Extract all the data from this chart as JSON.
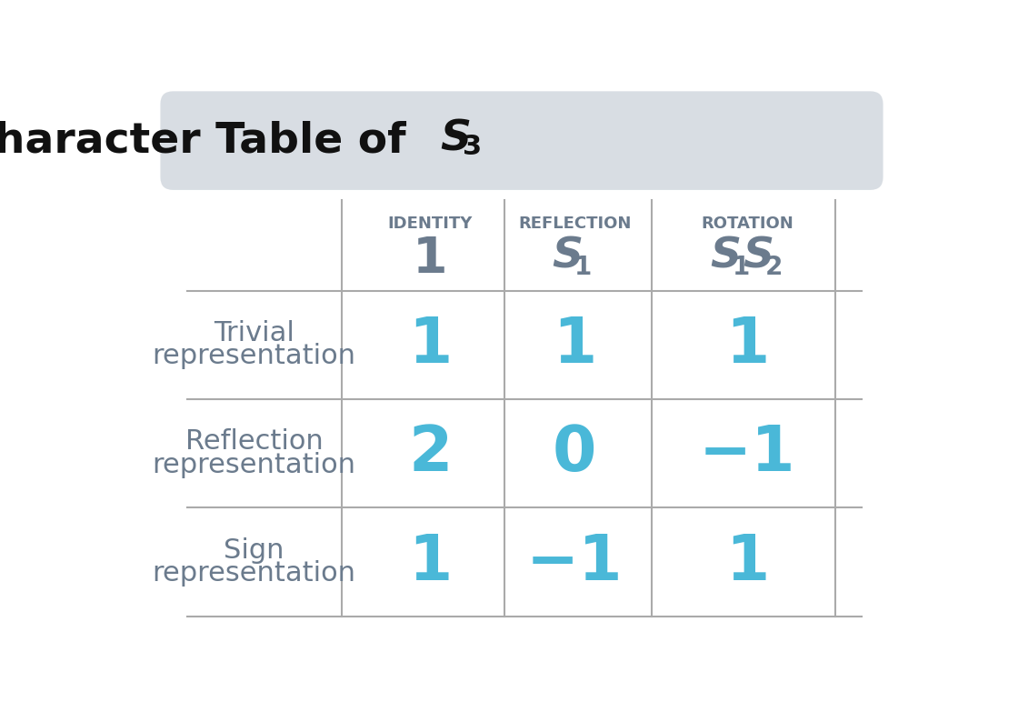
{
  "title_main": "Character Table of  ",
  "title_S": "S",
  "title_sub": "3",
  "bg_color": "#ffffff",
  "title_box_color": "#d8dde3",
  "col_headers_top": [
    "IDENTITY",
    "REFLECTION",
    "ROTATION"
  ],
  "row_labels": [
    [
      "Trivial",
      "representation"
    ],
    [
      "Reflection",
      "representation"
    ],
    [
      "Sign",
      "representation"
    ]
  ],
  "values": [
    [
      "1",
      "1",
      "1"
    ],
    [
      "2",
      "0",
      "−1"
    ],
    [
      "1",
      "−1",
      "1"
    ]
  ],
  "value_color": "#4ab8d8",
  "header_color": "#6b7b8d",
  "row_label_color": "#6b7b8d",
  "line_color": "#aaaaaa",
  "title_color": "#111111",
  "figsize": [
    11.2,
    7.72
  ],
  "dpi": 100
}
